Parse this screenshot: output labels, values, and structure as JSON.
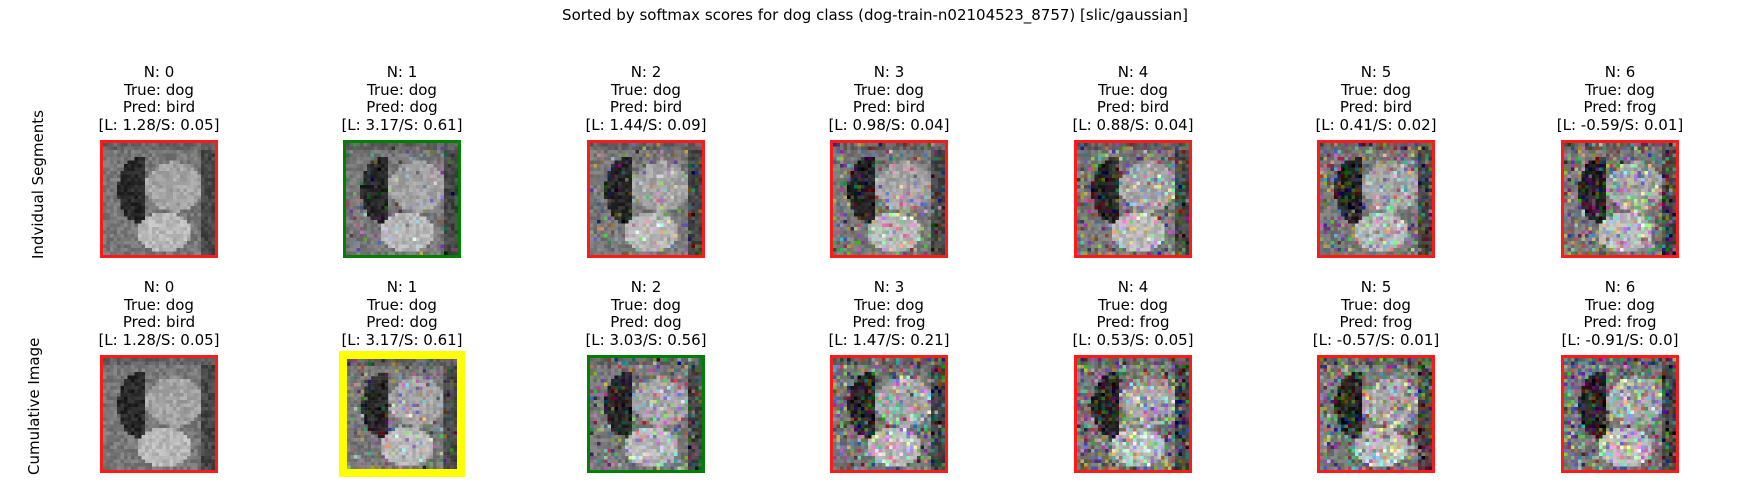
{
  "title": "Sorted by softmax scores for dog class (dog-train-n02104523_8757) [slic/gaussian]",
  "row_labels": [
    "Indvidual Segments",
    "Cumulative Image"
  ],
  "colors": {
    "red": "#ff1a1a",
    "green": "#008000",
    "yellow": "#ffff00",
    "gray_base": "#808080"
  },
  "chart_data": {
    "type": "image-grid",
    "title": "Sorted by softmax scores for dog class (dog-train-n02104523_8757) [slic/gaussian]",
    "rows": [
      {
        "name": "Indvidual Segments",
        "panels": [
          {
            "l1": "N: 0",
            "l2": "True: dog",
            "l3": "Pred: bird",
            "l4": "[L: 1.28/S: 0.05]",
            "border": "red",
            "noise": 0
          },
          {
            "l1": "N: 1",
            "l2": "True: dog",
            "l3": "Pred: dog",
            "l4": "[L: 3.17/S: 0.61]",
            "border": "green",
            "noise": 1
          },
          {
            "l1": "N: 2",
            "l2": "True: dog",
            "l3": "Pred: bird",
            "l4": "[L: 1.44/S: 0.09]",
            "border": "red",
            "noise": 2
          },
          {
            "l1": "N: 3",
            "l2": "True: dog",
            "l3": "Pred: bird",
            "l4": "[L: 0.98/S: 0.04]",
            "border": "red",
            "noise": 3
          },
          {
            "l1": "N: 4",
            "l2": "True: dog",
            "l3": "Pred: bird",
            "l4": "[L: 0.88/S: 0.04]",
            "border": "red",
            "noise": 4
          },
          {
            "l1": "N: 5",
            "l2": "True: dog",
            "l3": "Pred: bird",
            "l4": "[L: 0.41/S: 0.02]",
            "border": "red",
            "noise": 5
          },
          {
            "l1": "N: 6",
            "l2": "True: dog",
            "l3": "Pred: frog",
            "l4": "[L: -0.59/S: 0.01]",
            "border": "red",
            "noise": 6
          }
        ]
      },
      {
        "name": "Cumulative Image",
        "panels": [
          {
            "l1": "N: 0",
            "l2": "True: dog",
            "l3": "Pred: bird",
            "l4": "[L: 1.28/S: 0.05]",
            "border": "red",
            "noise": 0
          },
          {
            "l1": "N: 1",
            "l2": "True: dog",
            "l3": "Pred: dog",
            "l4": "[L: 3.17/S: 0.61]",
            "border": "yellow",
            "noise": 1
          },
          {
            "l1": "N: 2",
            "l2": "True: dog",
            "l3": "Pred: dog",
            "l4": "[L: 3.03/S: 0.56]",
            "border": "green",
            "noise": 2
          },
          {
            "l1": "N: 3",
            "l2": "True: dog",
            "l3": "Pred: frog",
            "l4": "[L: 1.47/S: 0.21]",
            "border": "red",
            "noise": 3
          },
          {
            "l1": "N: 4",
            "l2": "True: dog",
            "l3": "Pred: frog",
            "l4": "[L: 0.53/S: 0.05]",
            "border": "red",
            "noise": 4
          },
          {
            "l1": "N: 5",
            "l2": "True: dog",
            "l3": "Pred: frog",
            "l4": "[L: -0.57/S: 0.01]",
            "border": "red",
            "noise": 5
          },
          {
            "l1": "N: 6",
            "l2": "True: dog",
            "l3": "Pred: frog",
            "l4": "[L: -0.91/S: 0.0]",
            "border": "red",
            "noise": 6
          }
        ]
      }
    ]
  }
}
